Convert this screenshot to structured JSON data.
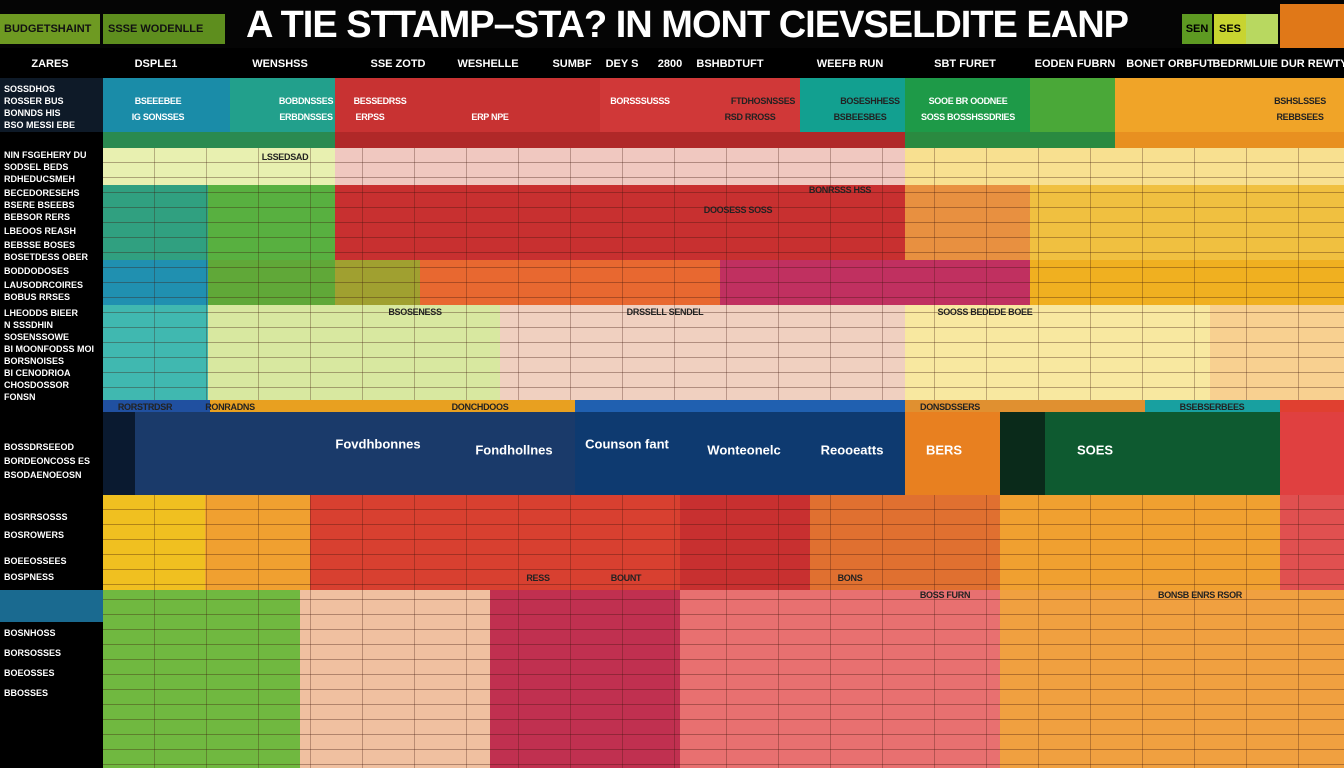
{
  "toolbar": {
    "tabs": [
      "BUDGETSHAINT",
      "SSSE WODENLLE"
    ],
    "title": "A TIE STTAMP–STA? IN MONT CIEVSELDITE EANP",
    "badges": [
      "SEN",
      "SES"
    ]
  },
  "columns": [
    "ZARES",
    "DSPLE1",
    "WENSHSS",
    "SSE ZOTD",
    "WESHELLE",
    "SUMBF",
    "DEY S",
    "2800",
    "BSHBDTUFT",
    "WEEFB RUN",
    "SBT FURET",
    "EODEN FUBRN",
    "BONET ORBFUT",
    "BEDRMLUIE DUR REWTY"
  ],
  "row_labels": [
    "SOSSDHOS",
    "ROSSER BUS",
    "BONNDS HIS",
    "BSO MESSI EBE",
    "NIN FSGEHERY DU",
    "SODSEL BEDS",
    "RDHEDUCSMEH",
    "BECEDORESEHS",
    "BSERE BSEEBS",
    "BEBSOR RERS",
    "LBEOOS REASH",
    "BEBSSE BOSES",
    "BOSETDESS OBER",
    "BODDODOSES",
    "LAUSODRCOIRES",
    "BOBUS RRSES",
    "LHEODDS BIEER",
    "N SSSDHIN",
    "SOSENSSOWE",
    "BI MOONFODSS MOI",
    "BORSNOISES",
    "BI CENODRIOA",
    "CHOSDOSSOR",
    "FONSN",
    "BOSSDRSEEOD",
    "BORDEONCOSS ES",
    "BSODAENOEOSN",
    "BOSRRSOSSS",
    "BOSROWERS",
    "BOEEOSSEES",
    "BOSPNESS",
    "BOSNHOSS",
    "BORSOSSES",
    "BOEOSSES",
    "BBOSSES"
  ],
  "cells": [
    "BSEEEBEE",
    "IG SONSSES",
    "BOBDNSSES",
    "ERBDNSSES",
    "BESSEDRSS",
    "ERPSS",
    "ERP NPE",
    "BORSSSUSSS",
    "FTDHOSNSSES",
    "RSD RROSS",
    "BOSESHHESS",
    "BSBEESBES",
    "SOOE BR OODNEE",
    "SOSS BOSSHSSDRIES",
    "BSHSLSSES",
    "REBBSEES",
    "LSSEDSAD",
    "BSOSENESS",
    "DRSSELL SENDEL",
    "SOOSS BEDEDE BOEE",
    "RORSTRDSR",
    "RONRADNS",
    "DONCHDOOS",
    "DONSDSSERS",
    "BSEBSERBEES",
    "RESS",
    "BOUNT",
    "BONS",
    "BOSS FURN",
    "BONSB ENRS RSOR",
    "BONRSSS HSS",
    "DOOSESS SOSS"
  ],
  "blocks": [
    "Fovdhbonnes",
    "Fondhollnes",
    "Counson fant",
    "Wonteonelc",
    "Reooeatts",
    "BERS",
    "SOES"
  ]
}
